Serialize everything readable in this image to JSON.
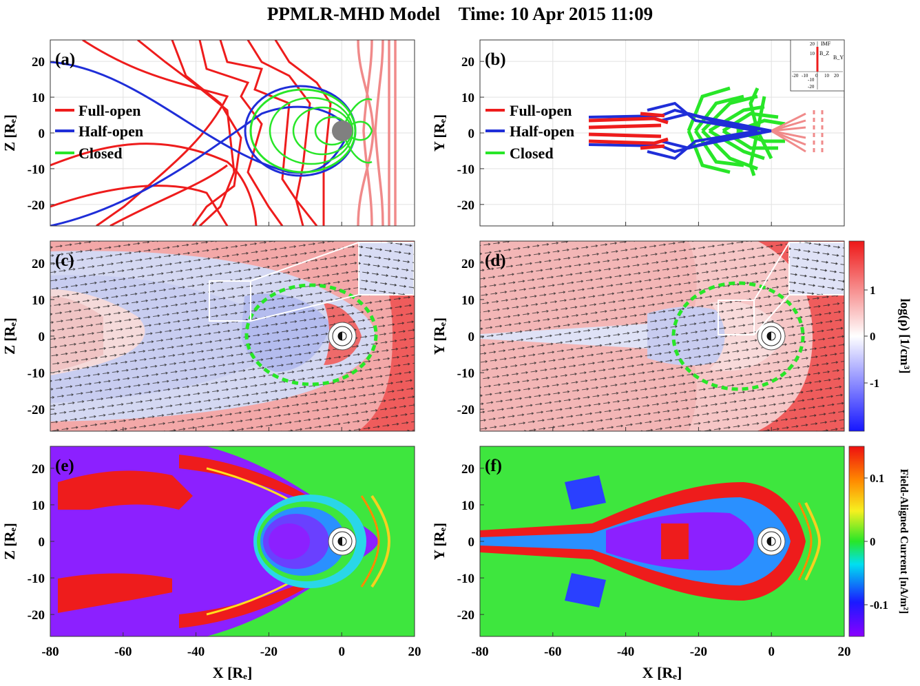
{
  "title": "PPMLR-MHD Model    Time: 10 Apr 2015 11:09",
  "colors": {
    "full_open": "#ee1c1c",
    "half_open": "#1f2ed8",
    "closed": "#28e628",
    "solar_wind_lines": "#f08a8a",
    "earth": "#808080"
  },
  "chart_data": [
    {
      "id": "a",
      "panel_label": "(a)",
      "type": "line",
      "plane": "XZ",
      "xlim": [
        -80,
        20
      ],
      "ylim": [
        -26,
        26
      ],
      "xticks": [
        -80,
        -60,
        -40,
        -20,
        0,
        20
      ],
      "yticks": [
        -20,
        -10,
        0,
        10,
        20
      ],
      "xlabel": "",
      "ylabel": "Z [R_E]",
      "grid": true,
      "legend": {
        "placement": "top-left",
        "entries": [
          {
            "name": "Full-open",
            "color": "#ee1c1c"
          },
          {
            "name": "Half-open",
            "color": "#1f2ed8"
          },
          {
            "name": "Closed",
            "color": "#28e628"
          }
        ]
      }
    },
    {
      "id": "b",
      "panel_label": "(b)",
      "type": "line",
      "plane": "XY",
      "xlim": [
        -80,
        20
      ],
      "ylim": [
        -26,
        26
      ],
      "xticks": [
        -80,
        -60,
        -40,
        -20,
        0,
        20
      ],
      "yticks": [
        -20,
        -10,
        0,
        10,
        20
      ],
      "xlabel": "",
      "ylabel": "Y [R_E]",
      "grid": true,
      "legend": {
        "placement": "top-left",
        "entries": [
          {
            "name": "Full-open",
            "color": "#ee1c1c"
          },
          {
            "name": "Half-open",
            "color": "#1f2ed8"
          },
          {
            "name": "Closed",
            "color": "#28e628"
          }
        ]
      },
      "imf_inset": {
        "title": "IMF",
        "bz_label": "B_Z",
        "by_label": "B_Y",
        "x_ticks": [
          "-20",
          "-10",
          "0",
          "10",
          "20"
        ],
        "y_ticks": [
          "20",
          "10",
          "-10",
          "-20"
        ],
        "imf_bz": 12,
        "imf_by": 0
      }
    },
    {
      "id": "c",
      "panel_label": "(c)",
      "type": "heatmap",
      "plane": "XZ",
      "quantity": "log(rho)",
      "xlim": [
        -80,
        20
      ],
      "ylim": [
        -26,
        26
      ],
      "xticks": [
        -80,
        -60,
        -40,
        -20,
        0,
        20
      ],
      "yticks": [
        -20,
        -10,
        0,
        10,
        20
      ],
      "xlabel": "",
      "ylabel": "Z [R_E]",
      "overlay": "velocity vectors, dashed closed-field boundary, zoom inset"
    },
    {
      "id": "d",
      "panel_label": "(d)",
      "type": "heatmap",
      "plane": "XY",
      "quantity": "log(rho)",
      "xlim": [
        -80,
        20
      ],
      "ylim": [
        -26,
        26
      ],
      "xticks": [
        -80,
        -60,
        -40,
        -20,
        0,
        20
      ],
      "yticks": [
        -20,
        -10,
        0,
        10,
        20
      ],
      "xlabel": "",
      "ylabel": "Y [R_E]",
      "colorbar": {
        "label": "log(ρ) [1/cm³]",
        "ticks": [
          "1",
          "0",
          "-1"
        ],
        "range": [
          -1.8,
          1.8
        ],
        "colormap": "blue-white-red"
      }
    },
    {
      "id": "e",
      "panel_label": "(e)",
      "type": "heatmap",
      "plane": "XZ",
      "quantity": "Field-Aligned Current",
      "xlim": [
        -80,
        20
      ],
      "ylim": [
        -26,
        26
      ],
      "xticks": [
        -80,
        -60,
        -40,
        -20,
        0,
        20
      ],
      "yticks": [
        -20,
        -10,
        0,
        10,
        20
      ],
      "xlabel": "X [R_E]",
      "ylabel": "Z [R_E]"
    },
    {
      "id": "f",
      "panel_label": "(f)",
      "type": "heatmap",
      "plane": "XY",
      "quantity": "Field-Aligned Current",
      "xlim": [
        -80,
        20
      ],
      "ylim": [
        -26,
        26
      ],
      "xticks": [
        -80,
        -60,
        -40,
        -20,
        0,
        20
      ],
      "yticks": [
        -20,
        -10,
        0,
        10,
        20
      ],
      "xlabel": "X [R_E]",
      "ylabel": "Y [R_E]",
      "colorbar": {
        "label": "Field-Aligned Current [nA/m²]",
        "ticks": [
          "0.1",
          "0",
          "-0.1"
        ],
        "range": [
          -0.15,
          0.15
        ],
        "colormap": "jet"
      }
    }
  ]
}
